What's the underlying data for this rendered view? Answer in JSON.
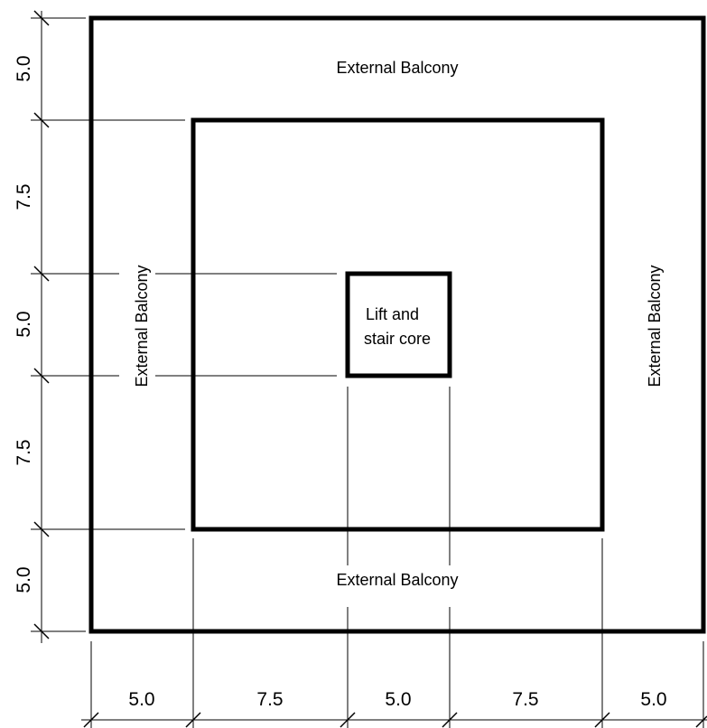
{
  "labels": {
    "balcony_top": "External Balcony",
    "balcony_bottom": "External Balcony",
    "balcony_left": "External Balcony",
    "balcony_right": "External Balcony",
    "core_line1": "Lift and",
    "core_line2": "stair core"
  },
  "dimensions": {
    "vertical": [
      "5.0",
      "7.5",
      "5.0",
      "7.5",
      "5.0"
    ],
    "horizontal": [
      "5.0",
      "7.5",
      "5.0",
      "7.5",
      "5.0"
    ]
  },
  "colors": {
    "line": "#000000",
    "background": "#ffffff"
  }
}
